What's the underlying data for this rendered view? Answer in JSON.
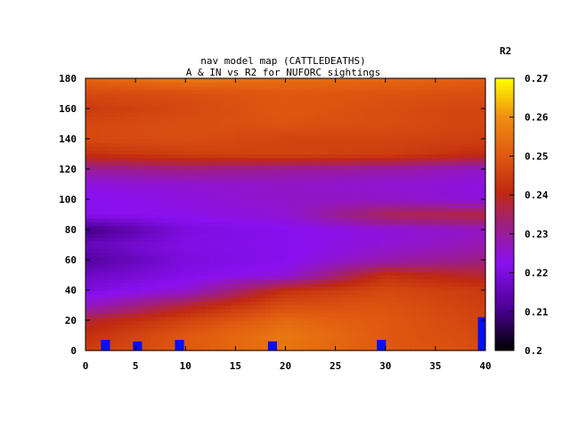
{
  "chart_data": {
    "type": "heatmap",
    "title_line1": "nav model map (CATTLEDEATHS)",
    "title_line2": "A & IN vs R2 for NUFORC sightings",
    "colorbar_label": "R2",
    "xlim": [
      0,
      40
    ],
    "ylim": [
      0,
      180
    ],
    "x_ticks": [
      "0",
      "5",
      "10",
      "15",
      "20",
      "25",
      "30",
      "35",
      "40"
    ],
    "y_ticks": [
      "0",
      "20",
      "40",
      "60",
      "80",
      "100",
      "120",
      "140",
      "160",
      "180"
    ],
    "colorbar_range": [
      0.2,
      0.27
    ],
    "colorbar_ticks": [
      "0.2",
      "0.21",
      "0.22",
      "0.23",
      "0.24",
      "0.25",
      "0.26",
      "0.27"
    ],
    "colormap": "black-purple-red-orange-yellow",
    "x": [
      0,
      10,
      20,
      30,
      40
    ],
    "y": [
      0,
      10,
      20,
      30,
      40,
      50,
      60,
      70,
      80,
      90,
      100,
      110,
      120,
      130,
      140,
      150,
      160,
      170,
      180
    ],
    "z": [
      [
        0.245,
        0.25,
        0.255,
        0.25,
        0.248
      ],
      [
        0.242,
        0.25,
        0.256,
        0.25,
        0.247
      ],
      [
        0.238,
        0.246,
        0.253,
        0.25,
        0.246
      ],
      [
        0.226,
        0.238,
        0.248,
        0.249,
        0.245
      ],
      [
        0.22,
        0.225,
        0.242,
        0.247,
        0.244
      ],
      [
        0.217,
        0.221,
        0.224,
        0.242,
        0.238
      ],
      [
        0.212,
        0.22,
        0.222,
        0.228,
        0.232
      ],
      [
        0.216,
        0.221,
        0.222,
        0.225,
        0.228
      ],
      [
        0.209,
        0.22,
        0.222,
        0.224,
        0.226
      ],
      [
        0.222,
        0.223,
        0.225,
        0.236,
        0.238
      ],
      [
        0.222,
        0.224,
        0.226,
        0.226,
        0.224
      ],
      [
        0.224,
        0.225,
        0.226,
        0.225,
        0.224
      ],
      [
        0.23,
        0.232,
        0.23,
        0.229,
        0.226
      ],
      [
        0.242,
        0.245,
        0.246,
        0.245,
        0.241
      ],
      [
        0.247,
        0.248,
        0.246,
        0.246,
        0.245
      ],
      [
        0.247,
        0.248,
        0.249,
        0.248,
        0.246
      ],
      [
        0.244,
        0.247,
        0.25,
        0.248,
        0.246
      ],
      [
        0.247,
        0.248,
        0.25,
        0.249,
        0.248
      ],
      [
        0.252,
        0.256,
        0.254,
        0.253,
        0.251
      ]
    ],
    "markers": [
      {
        "x": 2.0,
        "y": 5,
        "height": 7
      },
      {
        "x": 5.2,
        "y": 4,
        "height": 6
      },
      {
        "x": 9.4,
        "y": 5,
        "height": 7
      },
      {
        "x": 18.7,
        "y": 4,
        "height": 6
      },
      {
        "x": 29.6,
        "y": 5,
        "height": 7
      },
      {
        "x": 39.7,
        "y": 11,
        "height": 22
      }
    ],
    "marker_color": "#0010f0"
  }
}
